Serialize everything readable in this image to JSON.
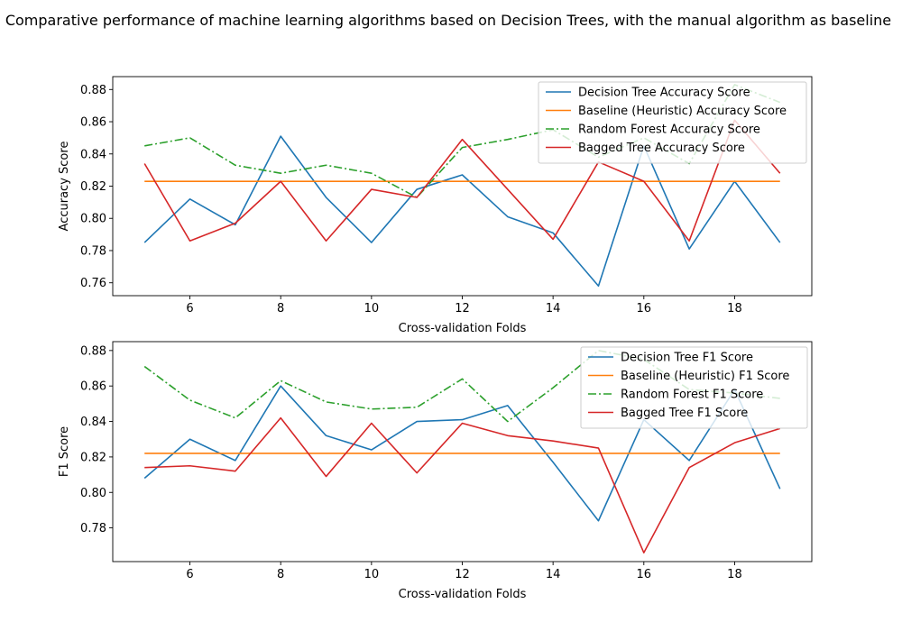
{
  "figure": {
    "suptitle": "Comparative performance of machine learning algorithms based on Decision Trees, with the manual algorithm as baseline"
  },
  "chart_data": [
    {
      "type": "line",
      "xlabel": "Cross-validation Folds",
      "ylabel": "Accuracy Score",
      "xlim": [
        4.3,
        19.7
      ],
      "ylim": [
        0.752,
        0.888
      ],
      "xticks": [
        6,
        8,
        10,
        12,
        14,
        16,
        18
      ],
      "yticks": [
        0.76,
        0.78,
        0.8,
        0.82,
        0.84,
        0.86,
        0.88
      ],
      "grid": false,
      "legend_position": "upper right",
      "x": [
        5,
        6,
        7,
        8,
        9,
        10,
        11,
        12,
        13,
        14,
        15,
        16,
        17,
        18,
        19
      ],
      "series": [
        {
          "name": "Decision Tree Accuracy Score",
          "color": "#1f77b4",
          "style": "solid",
          "values": [
            0.785,
            0.812,
            0.796,
            0.851,
            0.813,
            0.785,
            0.818,
            0.827,
            0.801,
            0.791,
            0.758,
            0.845,
            0.781,
            0.823,
            0.785
          ]
        },
        {
          "name": "Baseline (Heuristic) Accuracy Score",
          "color": "#ff7f0e",
          "style": "solid",
          "values": [
            0.823,
            0.823,
            0.823,
            0.823,
            0.823,
            0.823,
            0.823,
            0.823,
            0.823,
            0.823,
            0.823,
            0.823,
            0.823,
            0.823,
            0.823
          ]
        },
        {
          "name": "Random Forest Accuracy Score",
          "color": "#2ca02c",
          "style": "dashdot",
          "values": [
            0.845,
            0.85,
            0.833,
            0.828,
            0.833,
            0.828,
            0.813,
            0.844,
            0.849,
            0.855,
            0.838,
            0.85,
            0.834,
            0.883,
            0.872
          ]
        },
        {
          "name": "Bagged Tree Accuracy Score",
          "color": "#d62728",
          "style": "solid",
          "values": [
            0.834,
            0.786,
            0.797,
            0.823,
            0.786,
            0.818,
            0.813,
            0.849,
            0.818,
            0.787,
            0.835,
            0.823,
            0.786,
            0.861,
            0.828
          ]
        }
      ]
    },
    {
      "type": "line",
      "xlabel": "Cross-validation Folds",
      "ylabel": "F1 Score",
      "xlim": [
        4.3,
        19.7
      ],
      "ylim": [
        0.761,
        0.885
      ],
      "xticks": [
        6,
        8,
        10,
        12,
        14,
        16,
        18
      ],
      "yticks": [
        0.78,
        0.8,
        0.82,
        0.84,
        0.86,
        0.88
      ],
      "grid": false,
      "legend_position": "upper right",
      "x": [
        5,
        6,
        7,
        8,
        9,
        10,
        11,
        12,
        13,
        14,
        15,
        16,
        17,
        18,
        19
      ],
      "series": [
        {
          "name": "Decision Tree F1 Score",
          "color": "#1f77b4",
          "style": "solid",
          "values": [
            0.808,
            0.83,
            0.818,
            0.86,
            0.832,
            0.824,
            0.84,
            0.841,
            0.849,
            0.817,
            0.784,
            0.841,
            0.818,
            0.858,
            0.802
          ]
        },
        {
          "name": "Baseline (Heuristic) F1 Score",
          "color": "#ff7f0e",
          "style": "solid",
          "values": [
            0.822,
            0.822,
            0.822,
            0.822,
            0.822,
            0.822,
            0.822,
            0.822,
            0.822,
            0.822,
            0.822,
            0.822,
            0.822,
            0.822,
            0.822
          ]
        },
        {
          "name": "Random Forest F1 Score",
          "color": "#2ca02c",
          "style": "dashdot",
          "values": [
            0.871,
            0.852,
            0.842,
            0.863,
            0.851,
            0.847,
            0.848,
            0.864,
            0.84,
            0.859,
            0.88,
            0.875,
            0.858,
            0.856,
            0.853
          ]
        },
        {
          "name": "Bagged Tree F1 Score",
          "color": "#d62728",
          "style": "solid",
          "values": [
            0.814,
            0.815,
            0.812,
            0.842,
            0.809,
            0.839,
            0.811,
            0.839,
            0.832,
            0.829,
            0.825,
            0.766,
            0.814,
            0.828,
            0.836
          ]
        }
      ]
    }
  ]
}
